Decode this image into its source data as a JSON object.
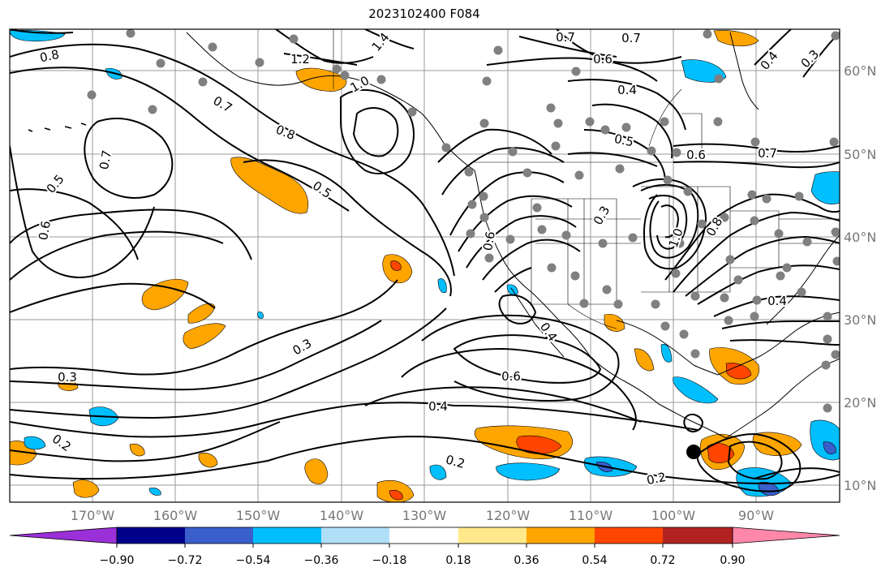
{
  "title": "2023102400 F084",
  "axes": {
    "lon_labels": [
      "170°W",
      "160°W",
      "150°W",
      "140°W",
      "130°W",
      "120°W",
      "110°W",
      "100°W",
      "90°W"
    ],
    "lat_labels": [
      "60°N",
      "50°N",
      "40°N",
      "30°N",
      "20°N",
      "10°N"
    ]
  },
  "contour_labels": [
    {
      "text": "0.8",
      "id": "c1"
    },
    {
      "text": "1.2",
      "id": "c2"
    },
    {
      "text": "1.4",
      "id": "c3"
    },
    {
      "text": "1.0",
      "id": "c4"
    },
    {
      "text": "0.7",
      "id": "c5"
    },
    {
      "text": "0.8",
      "id": "c6"
    },
    {
      "text": "0.7",
      "id": "c7"
    },
    {
      "text": "0.5",
      "id": "c8"
    },
    {
      "text": "0.6",
      "id": "c9"
    },
    {
      "text": "0.5",
      "id": "c10"
    },
    {
      "text": "0.3",
      "id": "c11"
    },
    {
      "text": "0.3",
      "id": "c12"
    },
    {
      "text": "0.2",
      "id": "c13"
    },
    {
      "text": "0.6",
      "id": "c14"
    },
    {
      "text": "0.4",
      "id": "c15"
    },
    {
      "text": "0.2",
      "id": "c16"
    },
    {
      "text": "0.7",
      "id": "c17"
    },
    {
      "text": "0.7",
      "id": "c18"
    },
    {
      "text": "0.6",
      "id": "c19"
    },
    {
      "text": "0.4",
      "id": "c20"
    },
    {
      "text": "0.5",
      "id": "c21"
    },
    {
      "text": "0.6",
      "id": "c22"
    },
    {
      "text": "0.7",
      "id": "c23"
    },
    {
      "text": "0.4",
      "id": "c24"
    },
    {
      "text": "0.3",
      "id": "c25"
    },
    {
      "text": "0.3",
      "id": "c26"
    },
    {
      "text": "0.6",
      "id": "c27"
    },
    {
      "text": "1.0",
      "id": "c28"
    },
    {
      "text": "0.8",
      "id": "c29"
    },
    {
      "text": "0.4",
      "id": "c30"
    },
    {
      "text": "0.4",
      "id": "c31"
    },
    {
      "text": "0.2",
      "id": "c32"
    }
  ],
  "colorbar": {
    "tick_labels": [
      "−0.90",
      "−0.72",
      "−0.54",
      "−0.36",
      "−0.18",
      "0.18",
      "0.36",
      "0.54",
      "0.72",
      "0.90"
    ],
    "colors": [
      "#9b30d9",
      "#00008b",
      "#3a5fcd",
      "#00bfff",
      "#b0e0f8",
      "#ffffff",
      "#ffe98a",
      "#ffa500",
      "#ff4500",
      "#b22222",
      "#ff88aa"
    ]
  }
}
